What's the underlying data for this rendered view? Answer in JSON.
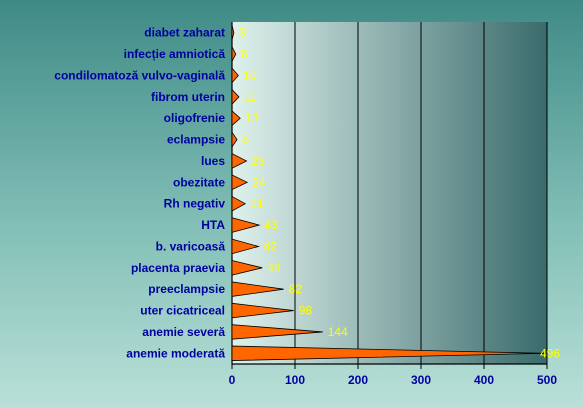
{
  "chart_data": {
    "type": "bar",
    "orientation": "horizontal",
    "categories": [
      "diabet zaharat",
      "infecție amniotică",
      "condilomatoză vulvo-vaginală",
      "fibrom uterin",
      "oligofrenie",
      "eclampsie",
      "lues",
      "obezitate",
      "Rh negativ",
      "HTA",
      "b. varicoasă",
      "placenta praevia",
      "preeclampsie",
      "uter cicatriceal",
      "anemie severă",
      "anemie moderată"
    ],
    "values": [
      3,
      6,
      10,
      11,
      13,
      8,
      23,
      24,
      21,
      43,
      42,
      48,
      82,
      98,
      144,
      496
    ],
    "xlim": [
      0,
      500
    ],
    "xticks": [
      0,
      100,
      200,
      300,
      400,
      500
    ],
    "grid": "vertical",
    "legend": "none",
    "title": "",
    "xlabel": "",
    "ylabel": "",
    "colors": {
      "bar_fill": "#ff6600",
      "bar_edge": "#000000",
      "label": "#0000a0",
      "value_label": "#ffff00",
      "plot_bg_light": "#d9eee9",
      "plot_bg_dark": "#3f6f70",
      "grid": "#000000"
    }
  }
}
